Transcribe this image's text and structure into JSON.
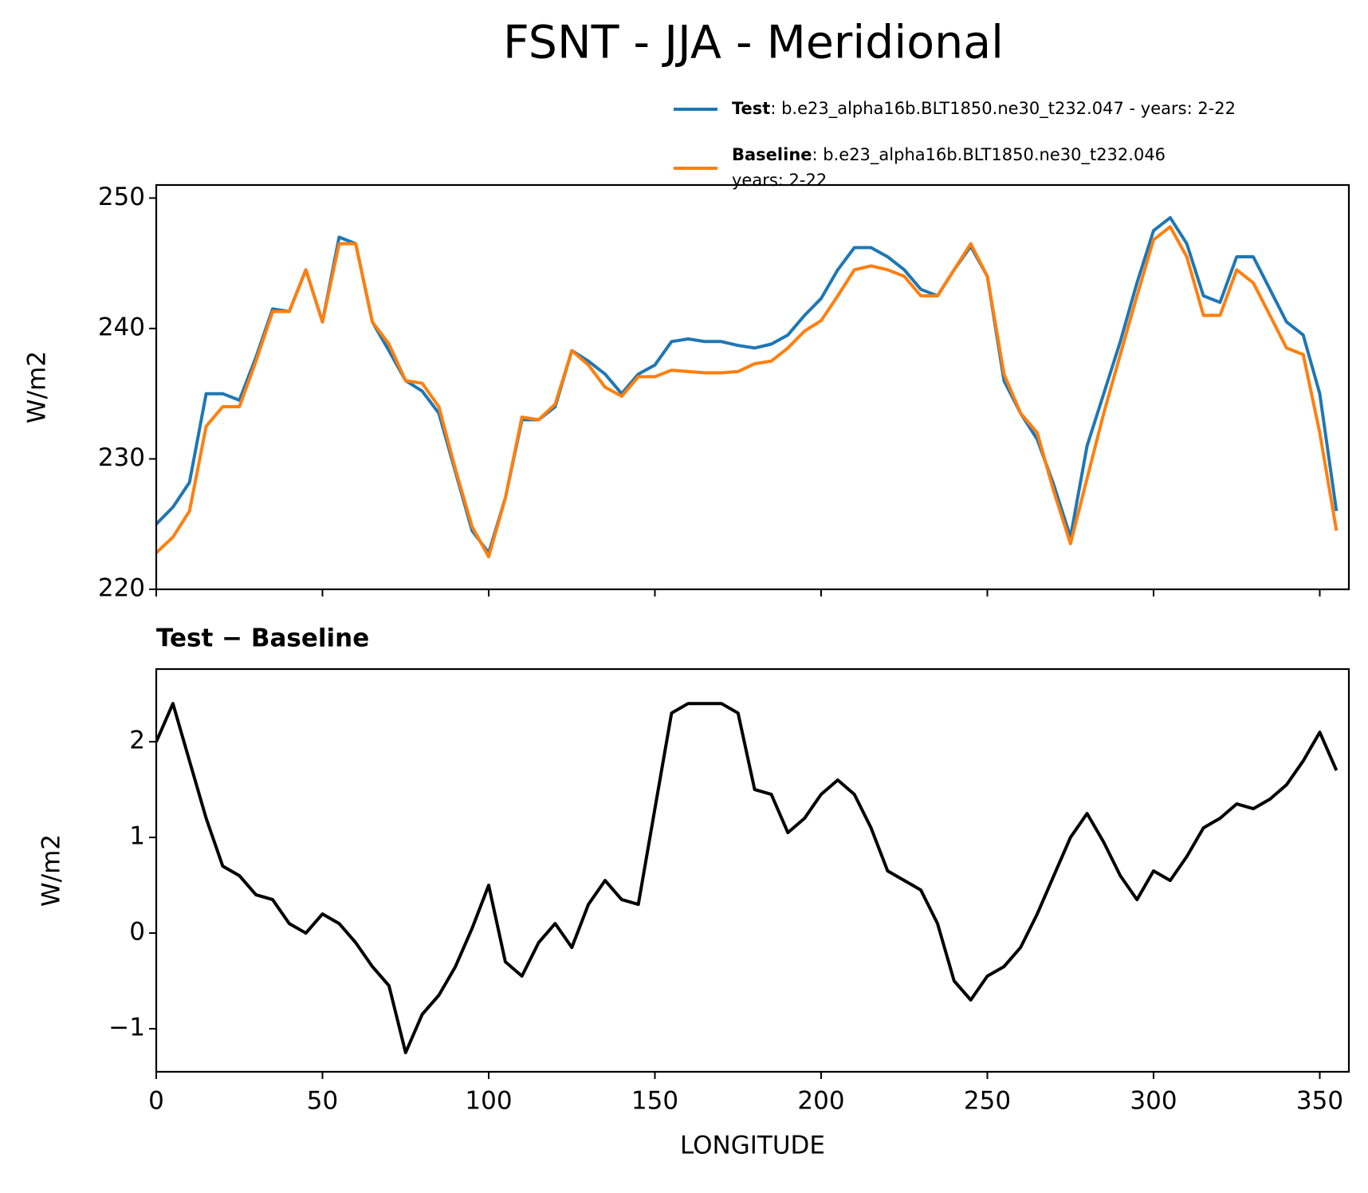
{
  "title": "FSNT - JJA - Meridional",
  "chart_data": [
    {
      "type": "line",
      "ylabel": "W/m2",
      "x": [
        0,
        5,
        10,
        15,
        20,
        25,
        30,
        35,
        40,
        45,
        50,
        55,
        60,
        65,
        70,
        75,
        80,
        85,
        90,
        95,
        100,
        105,
        110,
        115,
        120,
        125,
        130,
        135,
        140,
        145,
        150,
        155,
        160,
        165,
        170,
        175,
        180,
        185,
        190,
        195,
        200,
        205,
        210,
        215,
        220,
        225,
        230,
        235,
        240,
        245,
        250,
        255,
        260,
        265,
        270,
        275,
        280,
        285,
        290,
        295,
        300,
        305,
        310,
        315,
        320,
        325,
        330,
        335,
        340,
        345,
        350,
        355
      ],
      "xlim": [
        0,
        358.75
      ],
      "xticks": [
        0,
        50,
        100,
        150,
        200,
        250,
        300,
        350
      ],
      "ylim": [
        220,
        251
      ],
      "yticks": [
        220,
        230,
        240,
        250
      ],
      "series": [
        {
          "name": "Test",
          "description": [
            ": b.e23_alpha16b.BLT1850.ne30_t232.047 - years: 2-22"
          ],
          "color": "#1f77b4",
          "values": [
            225,
            226.3,
            228.2,
            235,
            235,
            234.5,
            237.8,
            241.5,
            241.3,
            244.5,
            240.5,
            247,
            246.5,
            240.5,
            238.3,
            236,
            235.2,
            233.5,
            229,
            224.5,
            222.8,
            227,
            233,
            233,
            234,
            238.3,
            237.5,
            236.5,
            235,
            236.5,
            237.2,
            239,
            239.2,
            239,
            239,
            238.7,
            238.5,
            238.8,
            239.5,
            241,
            242.3,
            244.5,
            246.2,
            246.2,
            245.5,
            244.5,
            243,
            242.5,
            244.5,
            246.3,
            244,
            236,
            233.5,
            231.5,
            228,
            224,
            231,
            235,
            239,
            243.5,
            247.5,
            248.5,
            246.5,
            242.5,
            242,
            245.5,
            245.5,
            243,
            240.5,
            239.5,
            235,
            226
          ]
        },
        {
          "name": "Baseline",
          "description": [
            ": b.e23_alpha16b.BLT1850.ne30_t232.046",
            "years: 2-22"
          ],
          "color": "#ff7f0e",
          "values": [
            222.8,
            224,
            226,
            232.5,
            234,
            234,
            237.5,
            241.3,
            241.3,
            244.5,
            240.5,
            246.5,
            246.5,
            240.5,
            238.8,
            236,
            235.8,
            234,
            229.2,
            224.8,
            222.5,
            227,
            233.2,
            233,
            234.2,
            238.3,
            237.2,
            235.5,
            234.8,
            236.3,
            236.3,
            236.8,
            236.7,
            236.6,
            236.6,
            236.7,
            237.3,
            237.5,
            238.5,
            239.8,
            240.6,
            242.5,
            244.5,
            244.8,
            244.5,
            244,
            242.5,
            242.5,
            244.5,
            246.5,
            244,
            236.5,
            233.5,
            232,
            227.5,
            223.5,
            228.5,
            233.5,
            238,
            242.5,
            246.8,
            247.8,
            245.5,
            241,
            241,
            244.5,
            243.5,
            241,
            238.5,
            238,
            232,
            224.5
          ]
        }
      ]
    },
    {
      "type": "line",
      "title": "Test − Baseline",
      "ylabel": "W/m2",
      "xlabel": "LONGITUDE",
      "x": [
        0,
        5,
        10,
        15,
        20,
        25,
        30,
        35,
        40,
        45,
        50,
        55,
        60,
        65,
        70,
        75,
        80,
        85,
        90,
        95,
        100,
        105,
        110,
        115,
        120,
        125,
        130,
        135,
        140,
        145,
        150,
        155,
        160,
        165,
        170,
        175,
        180,
        185,
        190,
        195,
        200,
        205,
        210,
        215,
        220,
        225,
        230,
        235,
        240,
        245,
        250,
        255,
        260,
        265,
        270,
        275,
        280,
        285,
        290,
        295,
        300,
        305,
        310,
        315,
        320,
        325,
        330,
        335,
        340,
        345,
        350,
        355
      ],
      "xlim": [
        0,
        358.75
      ],
      "xticks": [
        0,
        50,
        100,
        150,
        200,
        250,
        300,
        350
      ],
      "ylim": [
        -1.45,
        2.76
      ],
      "yticks": [
        {
          "value": -1,
          "label": "−1"
        },
        0,
        1,
        2
      ],
      "series": [
        {
          "color": "#000000",
          "values": [
            2.0,
            2.4,
            1.8,
            1.2,
            0.7,
            0.6,
            0.4,
            0.35,
            0.1,
            0.0,
            0.2,
            0.1,
            -0.1,
            -0.35,
            -0.55,
            -1.25,
            -0.85,
            -0.65,
            -0.35,
            0.05,
            0.5,
            -0.3,
            -0.45,
            -0.1,
            0.1,
            -0.15,
            0.3,
            0.55,
            0.35,
            0.3,
            1.3,
            2.3,
            2.4,
            2.4,
            2.4,
            2.3,
            1.5,
            1.45,
            1.05,
            1.2,
            1.45,
            1.6,
            1.45,
            1.1,
            0.65,
            0.55,
            0.45,
            0.1,
            -0.5,
            -0.7,
            -0.45,
            -0.35,
            -0.15,
            0.2,
            0.6,
            1.0,
            1.25,
            0.95,
            0.6,
            0.35,
            0.65,
            0.55,
            0.8,
            1.1,
            1.2,
            1.35,
            1.3,
            1.4,
            1.55,
            1.8,
            2.1,
            1.7
          ]
        }
      ]
    }
  ]
}
